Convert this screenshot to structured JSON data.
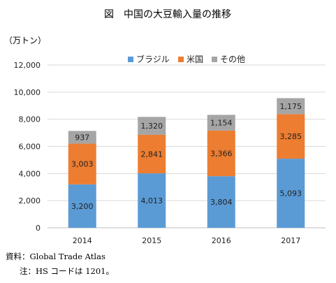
{
  "chart_data": {
    "type": "bar",
    "stacked": true,
    "title": "図　中国の大豆輸入量の推移",
    "unit_label": "（万トン）",
    "categories": [
      "2014",
      "2015",
      "2016",
      "2017"
    ],
    "series": [
      {
        "name": "ブラジル",
        "color": "#5b9bd5",
        "values": [
          3200,
          4013,
          3804,
          5093
        ]
      },
      {
        "name": "米国",
        "color": "#ed7d31",
        "values": [
          3003,
          2841,
          3366,
          3285
        ]
      },
      {
        "name": "その他",
        "color": "#a5a5a5",
        "values": [
          937,
          1320,
          1154,
          1175
        ]
      }
    ],
    "data_labels": [
      [
        "3,200",
        "4,013",
        "3,804",
        "5,093"
      ],
      [
        "3,003",
        "2,841",
        "3,366",
        "3,285"
      ],
      [
        "937",
        "1,320",
        "1,154",
        "1,175"
      ]
    ],
    "ylim": [
      0,
      12000
    ],
    "yticks": [
      "0",
      "2,000",
      "4,000",
      "6,000",
      "8,000",
      "10,000",
      "12,000"
    ],
    "grid": true,
    "legend_position": "top-center"
  },
  "notes": {
    "source": "資料：Global Trade Atlas",
    "note": "注：HS コードは 1201。"
  }
}
